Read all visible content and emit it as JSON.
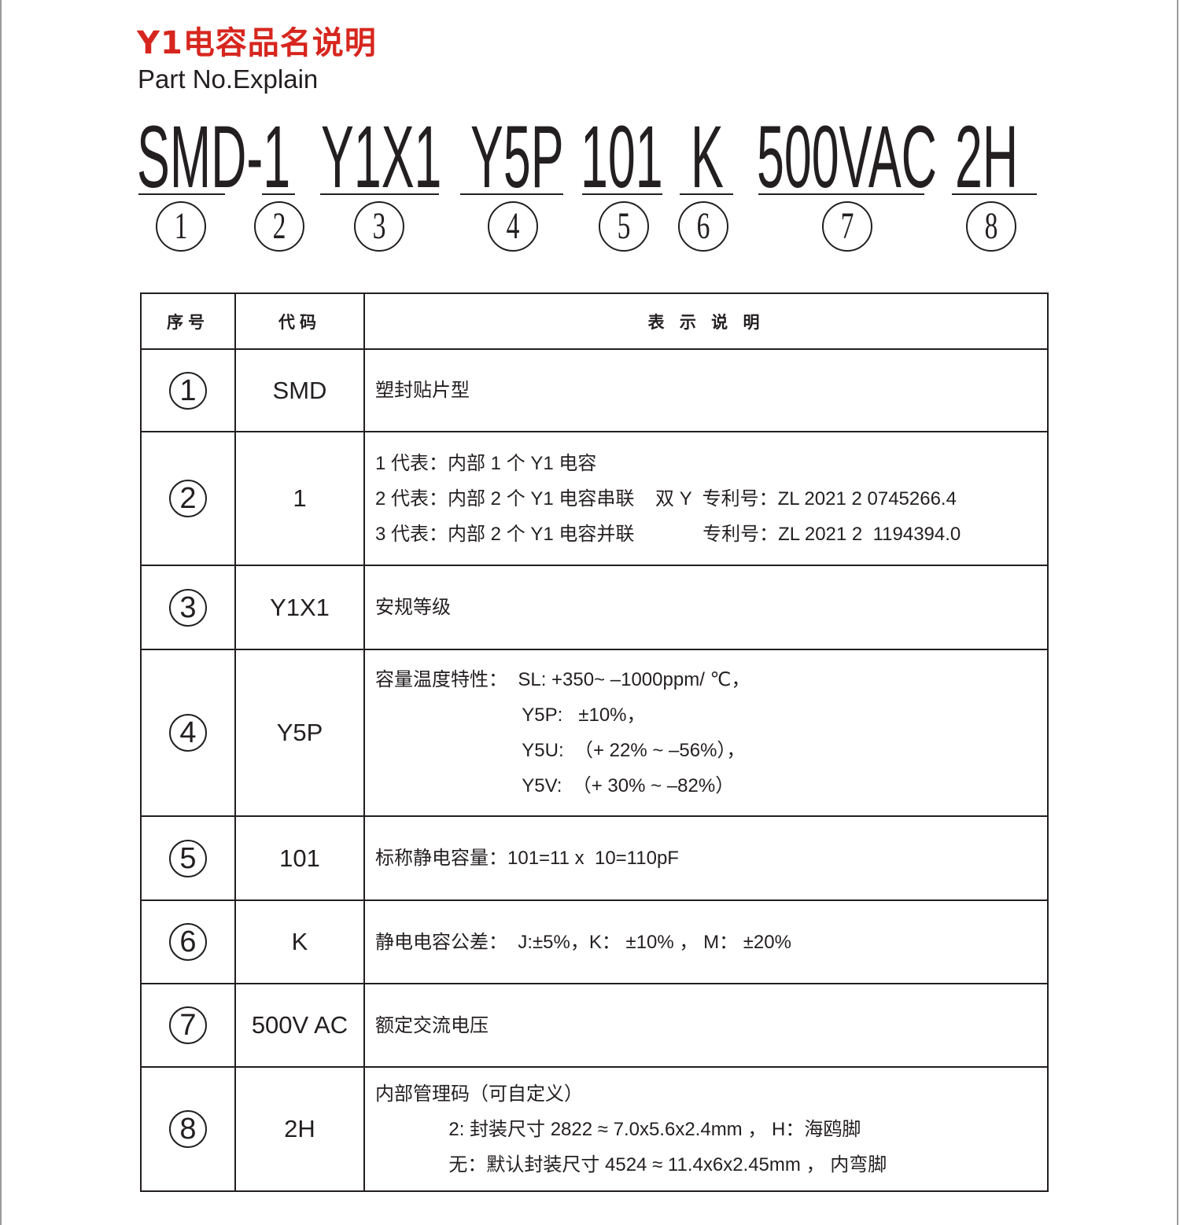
{
  "title": "Y1电容品名说明",
  "subtitle": "Part No.Explain",
  "part_number": {
    "segments": [
      "SMD-1",
      "Y1X1",
      "Y5P",
      "101",
      "K",
      "500VAC",
      "2H"
    ],
    "circled": [
      "1",
      "2",
      "3",
      "4",
      "5",
      "6",
      "7",
      "8"
    ]
  },
  "table": {
    "headers": [
      "序号",
      "代码",
      "表 示 说 明"
    ],
    "rows": [
      {
        "no": "1",
        "code": "SMD",
        "lines": [
          "塑封贴片型"
        ]
      },
      {
        "no": "2",
        "code": "1",
        "lines": [
          "1 代表：内部 1 个 Y1 电容",
          "2 代表：内部 2 个 Y1 电容串联    双 Y  专利号：ZL 2021 2 0745266.4",
          "3 代表：内部 2 个 Y1 电容并联             专利号：ZL 2021 2  1194394.0"
        ]
      },
      {
        "no": "3",
        "code": "Y1X1",
        "lines": [
          "安规等级"
        ]
      },
      {
        "no": "4",
        "code": "Y5P",
        "lines": [
          "容量温度特性：  SL: +350~ –1000ppm/ ℃，",
          "                            Y5P:   ±10%，",
          "                            Y5U:  （+ 22% ~ –56%），",
          "                            Y5V:  （+ 30% ~ –82%）"
        ]
      },
      {
        "no": "5",
        "code": "101",
        "lines": [
          "标称静电容量：101=11 x  10=110pF"
        ]
      },
      {
        "no": "6",
        "code": "K",
        "lines": [
          "静电电容公差：  J:±5%，K： ±10% ， M： ±20%"
        ]
      },
      {
        "no": "7",
        "code": "500V AC",
        "lines": [
          "额定交流电压"
        ]
      },
      {
        "no": "8",
        "code": "2H",
        "lines": [
          "内部管理码（可自定义）",
          "              2: 封装尺寸 2822 ≈ 7.0x5.6x2.4mm ， H：海鸥脚",
          "              无：默认封装尺寸 4524 ≈ 11.4x6x2.45mm ， 内弯脚"
        ]
      }
    ]
  }
}
